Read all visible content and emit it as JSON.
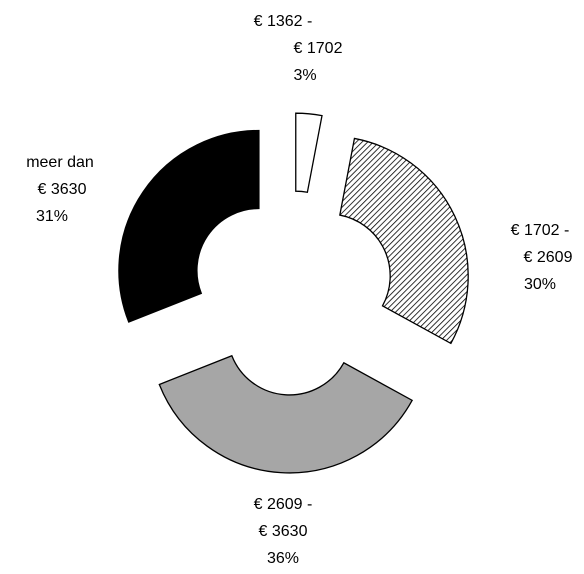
{
  "chart_data": {
    "type": "donut",
    "categories": [
      [
        "€ 1362 -",
        "€ 1702"
      ],
      [
        "€ 1702 -",
        "€ 2609"
      ],
      [
        "€ 2609 -",
        "€ 3630"
      ],
      [
        "meer dan",
        "€ 3630"
      ]
    ],
    "values": [
      3,
      30,
      36,
      31
    ],
    "value_labels": [
      "3%",
      "30%",
      "36%",
      "31%"
    ],
    "fills": [
      "#ffffff",
      "hatch",
      "#a6a6a6",
      "#000000"
    ]
  }
}
